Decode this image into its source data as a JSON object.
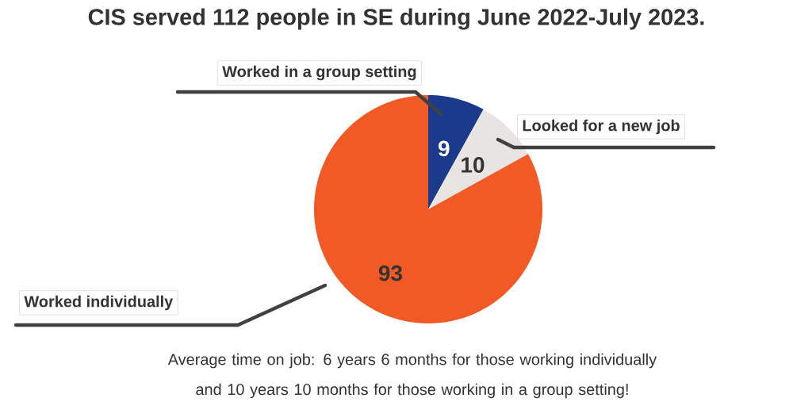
{
  "chart_data": {
    "type": "pie",
    "title": "CIS served 112 people in SE during June 2022-July 2023.",
    "categories": [
      "Worked in a group setting",
      "Looked for a new job",
      "Worked individually"
    ],
    "values": [
      9,
      10,
      93
    ],
    "colors": [
      "#1b3a8c",
      "#e8e4e1",
      "#f15a24"
    ],
    "data_labels": true,
    "annotations": [
      "Average time on job: 6 years 6 months for those working individually and 10 years 10 months for those working in a group setting!"
    ]
  }
}
